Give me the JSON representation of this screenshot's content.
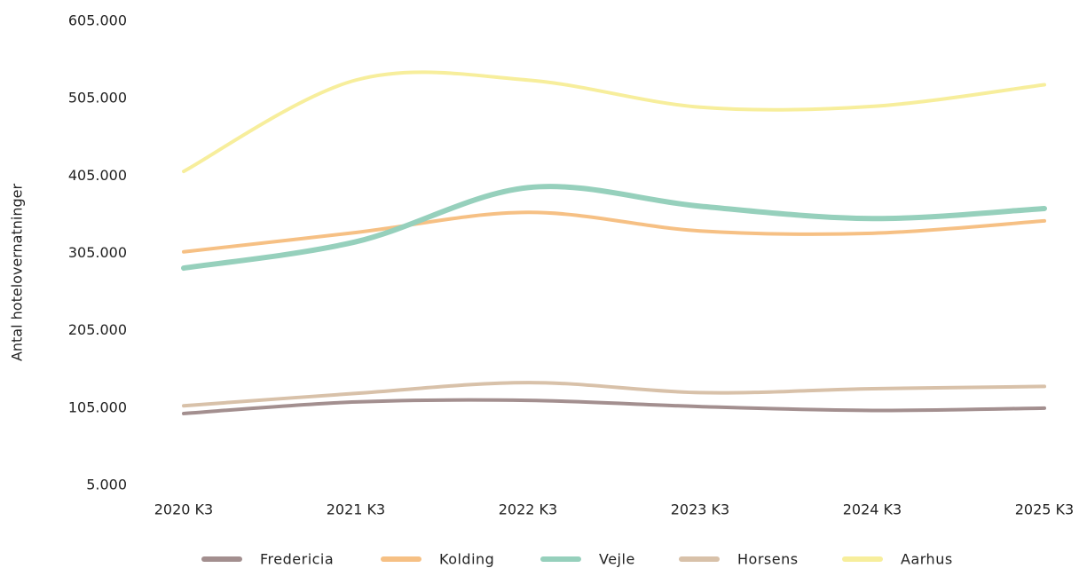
{
  "chart_data": {
    "type": "line",
    "y_label": "Antal hotelovernatninger",
    "categories": [
      "2020 K3",
      "2021 K3",
      "2022 K3",
      "2023 K3",
      "2024 K3",
      "2025 K3"
    ],
    "series": [
      {
        "name": "Fredericia",
        "color": "#a38f8f",
        "values": [
          98000,
          113000,
          115000,
          107000,
          102000,
          105000
        ]
      },
      {
        "name": "Kolding",
        "color": "#f6c084",
        "values": [
          307000,
          332000,
          358000,
          334000,
          331000,
          347000
        ]
      },
      {
        "name": "Vejle",
        "color": "#96d0bc",
        "values": [
          286000,
          320000,
          390000,
          366000,
          350000,
          363000
        ]
      },
      {
        "name": "Horsens",
        "color": "#d8c1a9",
        "values": [
          108000,
          124000,
          138000,
          125000,
          130000,
          133000
        ]
      },
      {
        "name": "Aarhus",
        "color": "#f7ee9c",
        "values": [
          411000,
          529000,
          529000,
          494000,
          495000,
          523000
        ]
      }
    ],
    "ylim": [
      5000,
      605000
    ],
    "yticks": [
      {
        "value": 5000,
        "label": "5.000"
      },
      {
        "value": 105000,
        "label": "105.000"
      },
      {
        "value": 205000,
        "label": "205.000"
      },
      {
        "value": 305000,
        "label": "305.000"
      },
      {
        "value": 405000,
        "label": "405.000"
      },
      {
        "value": 505000,
        "label": "505.000"
      },
      {
        "value": 605000,
        "label": "605.000"
      }
    ],
    "grid": false,
    "legend": "bottom"
  }
}
